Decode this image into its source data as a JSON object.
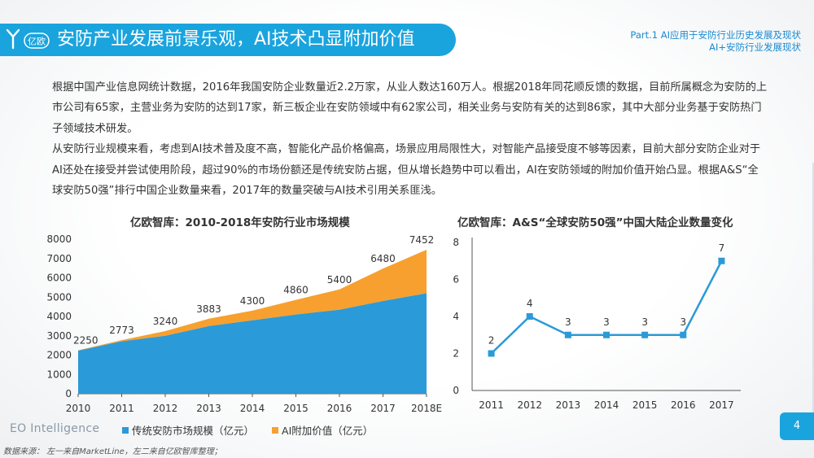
{
  "header": {
    "title": "安防产业发展前景乐观，AI技术凸显附加价值",
    "part_line1": "Part.1 AI应用于安防行业历史发展及现状",
    "part_line2": "AI+安防行业发展现状",
    "logo_text": "亿欧"
  },
  "body": {
    "para1": "根据中国产业信息网统计数据，2016年我国安防企业数量近2.2万家，从业人数达160万人。根据2018年同花顺反馈的数据，目前所属概念为安防的上市公司有65家，主营业务为安防的达到17家，新三板企业在安防领域中有62家公司，相关业务与安防有关的达到86家，其中大部分业务基于安防热门子领域技术研发。",
    "para2": "从安防行业规模来看，考虑到AI技术普及度不高，智能化产品价格偏高，场景应用局限性大，对智能产品接受度不够等因素，目前大部分安防企业对于AI还处在接受并尝试使用阶段，超过90%的市场份额还是传统安防占据，但从增长趋势中可以看出，AI在安防领域的附加价值开始凸显。根据A&S“全球安防50强”排行中国企业数量来看，2017年的数量突破与AI技术引用关系匪浅。"
  },
  "footer": {
    "brand": "EO Intelligence",
    "source": "数据来源：  左一来自MarketLine，左二来自亿欧智库整理；",
    "page": "4"
  },
  "colors": {
    "brand_blue": "#1aa4de",
    "series_traditional": "#2b9ad8",
    "series_ai": "#f7a02f",
    "line": "#2b9ad8"
  },
  "chart_data": [
    {
      "type": "area",
      "stacked": true,
      "title": "亿欧智库：2010-2018年安防行业市场规模",
      "categories": [
        "2010",
        "2011",
        "2012",
        "2013",
        "2014",
        "2015",
        "2016",
        "2017",
        "2018E"
      ],
      "series": [
        {
          "name": "传统安防市场规模（亿元）",
          "values": [
            2230,
            2710,
            3000,
            3500,
            3800,
            4100,
            4350,
            4800,
            5200
          ]
        },
        {
          "name": "AI附加价值（亿元）",
          "values": [
            20,
            63,
            240,
            383,
            500,
            760,
            1050,
            1680,
            2252
          ]
        }
      ],
      "total_labels": [
        "2250",
        "2773",
        "3240",
        "3883",
        "4300",
        "4860",
        "5400",
        "6480",
        "7452"
      ],
      "totals": [
        2250,
        2773,
        3240,
        3883,
        4300,
        4860,
        5400,
        6480,
        7452
      ],
      "ylim": [
        0,
        8000
      ],
      "yticks": [
        "0",
        "1000",
        "2000",
        "3000",
        "4000",
        "5000",
        "6000",
        "7000",
        "8000"
      ],
      "xlabel": "",
      "ylabel": "",
      "legend": "bottom"
    },
    {
      "type": "line",
      "title": "亿欧智库：A&S“全球安防50强”中国大陆企业数量变化",
      "categories": [
        "2011",
        "2012",
        "2013",
        "2014",
        "2015",
        "2016",
        "2017"
      ],
      "values": [
        2,
        4,
        3,
        3,
        3,
        3,
        7
      ],
      "value_labels": [
        "2",
        "4",
        "3",
        "3",
        "3",
        "3",
        "7"
      ],
      "ylim": [
        0,
        8
      ],
      "yticks": [
        "0",
        "2",
        "4",
        "6",
        "8"
      ],
      "xlabel": "",
      "ylabel": ""
    }
  ]
}
